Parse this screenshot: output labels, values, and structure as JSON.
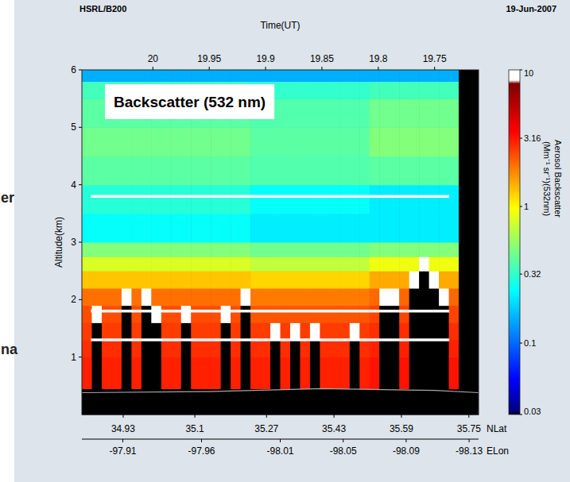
{
  "chart_data": {
    "type": "heatmap",
    "title": "Backscatter (532 nm)",
    "header_left": "HSRL/B200",
    "header_right": "19-Jun-2007",
    "x_label": "Time(UT)",
    "y_label": "Altitude(km)",
    "side_texts": [
      "er",
      "na"
    ],
    "grid": false,
    "xlim": [
      20.063,
      19.711
    ],
    "xticks": [
      20,
      19.95,
      19.9,
      19.85,
      19.8,
      19.75
    ],
    "ylim": [
      0,
      6
    ],
    "yticks": [
      1,
      2,
      3,
      4,
      5,
      6
    ],
    "x_edges": [
      20.063,
      20.0542,
      20.0454,
      20.0366,
      20.0278,
      20.019,
      20.0102,
      20.0014,
      19.9926,
      19.9838,
      19.975,
      19.9662,
      19.9574,
      19.9486,
      19.9398,
      19.931,
      19.9222,
      19.9134,
      19.9046,
      19.8958,
      19.887,
      19.8782,
      19.8694,
      19.8606,
      19.8518,
      19.843,
      19.8342,
      19.8254,
      19.8166,
      19.8078,
      19.799,
      19.7902,
      19.7814,
      19.7726,
      19.7638,
      19.755,
      19.7462,
      19.7374,
      19.7286,
      19.7198,
      19.711
    ],
    "y_edges": [
      0,
      0.45,
      1,
      1.3,
      1.6,
      1.9,
      2.2,
      2.5,
      2.75,
      3,
      3.5,
      4,
      4.5,
      5,
      5.5,
      5.8,
      6
    ],
    "values": [
      [
        0.03,
        3,
        2.8,
        2.6,
        2.4,
        2,
        1.3,
        0.8,
        0.5,
        0.25,
        0.3,
        0.4,
        0.45,
        0.4,
        0.35,
        0.15
      ],
      [
        0.03,
        0.03,
        0.03,
        0.03,
        10,
        2,
        1.3,
        0.8,
        0.5,
        0.25,
        0.3,
        0.4,
        0.45,
        0.4,
        0.35,
        0.15
      ],
      [
        0.03,
        3,
        2.8,
        2.6,
        2.4,
        2,
        1.3,
        0.8,
        0.5,
        0.25,
        0.3,
        0.4,
        0.45,
        0.4,
        0.35,
        0.15
      ],
      [
        0.03,
        3,
        2.8,
        2.6,
        2.4,
        2,
        1.3,
        0.8,
        0.5,
        0.25,
        0.3,
        0.4,
        0.45,
        0.4,
        0.35,
        0.15
      ],
      [
        0.03,
        0.03,
        0.03,
        0.03,
        0.03,
        10,
        1.3,
        0.8,
        0.5,
        0.25,
        0.3,
        0.4,
        0.45,
        0.4,
        0.35,
        0.15
      ],
      [
        0.03,
        3,
        2.8,
        2.6,
        2.4,
        2,
        1.3,
        0.8,
        0.5,
        0.25,
        0.3,
        0.4,
        0.45,
        0.4,
        0.35,
        0.15
      ],
      [
        0.03,
        0.03,
        0.03,
        0.03,
        0.03,
        10,
        1.3,
        0.8,
        0.5,
        0.25,
        0.3,
        0.4,
        0.45,
        0.4,
        0.35,
        0.15
      ],
      [
        0.03,
        0.03,
        0.03,
        0.03,
        10,
        2,
        1.3,
        0.8,
        0.5,
        0.25,
        0.3,
        0.4,
        0.45,
        0.4,
        0.35,
        0.15
      ],
      [
        0.03,
        3,
        2.8,
        2.6,
        2.4,
        2,
        1.3,
        0.8,
        0.5,
        0.25,
        0.3,
        0.4,
        0.45,
        0.4,
        0.35,
        0.15
      ],
      [
        0.03,
        3,
        2.8,
        2.6,
        2.4,
        2,
        1.3,
        0.8,
        0.5,
        0.25,
        0.3,
        0.4,
        0.45,
        0.4,
        0.35,
        0.15
      ],
      [
        0.03,
        0.03,
        0.03,
        0.03,
        10,
        2,
        1.3,
        0.8,
        0.5,
        0.25,
        0.3,
        0.4,
        0.45,
        0.4,
        0.35,
        0.15
      ],
      [
        0.03,
        3,
        2.8,
        2.6,
        2.4,
        2,
        1.3,
        0.8,
        0.5,
        0.25,
        0.3,
        0.4,
        0.45,
        0.4,
        0.35,
        0.15
      ],
      [
        0.03,
        3,
        2.8,
        2.6,
        2.4,
        2,
        1.3,
        0.8,
        0.5,
        0.25,
        0.3,
        0.4,
        0.45,
        0.4,
        0.35,
        0.15
      ],
      [
        0.03,
        3,
        2.8,
        2.6,
        2.4,
        2,
        1.3,
        0.8,
        0.5,
        0.25,
        0.3,
        0.4,
        0.45,
        0.4,
        0.35,
        0.15
      ],
      [
        0.03,
        0.03,
        0.03,
        0.03,
        10,
        2,
        1.3,
        0.8,
        0.5,
        0.25,
        0.3,
        0.4,
        0.45,
        0.4,
        0.35,
        0.15
      ],
      [
        0.03,
        3,
        2.8,
        2.6,
        2.4,
        2,
        1.3,
        0.8,
        0.5,
        0.25,
        0.3,
        0.4,
        0.45,
        0.4,
        0.35,
        0.15
      ],
      [
        0.03,
        0.03,
        0.03,
        0.03,
        0.03,
        10,
        1.3,
        0.8,
        0.5,
        0.25,
        0.3,
        0.4,
        0.45,
        0.4,
        0.35,
        0.15
      ],
      [
        0.03,
        3,
        2.8,
        2.6,
        2.3,
        1.9,
        1.2,
        0.7,
        0.45,
        0.22,
        0.25,
        0.38,
        0.4,
        0.38,
        0.32,
        0.15
      ],
      [
        0.03,
        3,
        2.8,
        2.6,
        2.3,
        1.9,
        1.2,
        0.7,
        0.45,
        0.22,
        0.25,
        0.38,
        0.4,
        0.38,
        0.32,
        0.15
      ],
      [
        0.03,
        0.03,
        0.03,
        10,
        2.3,
        1.9,
        1.2,
        0.7,
        0.45,
        0.22,
        0.25,
        0.38,
        0.4,
        0.38,
        0.32,
        0.15
      ],
      [
        0.03,
        3,
        2.8,
        2.6,
        2.3,
        1.9,
        1.2,
        0.7,
        0.45,
        0.22,
        0.25,
        0.38,
        0.4,
        0.38,
        0.32,
        0.15
      ],
      [
        0.03,
        0.03,
        0.03,
        10,
        2.3,
        1.9,
        1.2,
        0.7,
        0.45,
        0.22,
        0.25,
        0.38,
        0.4,
        0.38,
        0.32,
        0.15
      ],
      [
        0.03,
        3,
        2.8,
        2.6,
        2.3,
        1.9,
        1.2,
        0.7,
        0.45,
        0.22,
        0.25,
        0.38,
        0.4,
        0.38,
        0.32,
        0.15
      ],
      [
        0.03,
        0.03,
        0.03,
        10,
        2.3,
        1.9,
        1.2,
        0.7,
        0.45,
        0.22,
        0.25,
        0.38,
        0.4,
        0.38,
        0.32,
        0.15
      ],
      [
        0.03,
        3,
        2.8,
        2.6,
        2.3,
        1.9,
        1.2,
        0.7,
        0.45,
        0.22,
        0.25,
        0.38,
        0.4,
        0.38,
        0.32,
        0.15
      ],
      [
        0.03,
        3,
        2.8,
        2.6,
        2.3,
        1.9,
        1.2,
        0.7,
        0.45,
        0.22,
        0.25,
        0.38,
        0.4,
        0.38,
        0.32,
        0.15
      ],
      [
        0.03,
        3,
        2.8,
        2.6,
        2.3,
        1.9,
        1.2,
        0.7,
        0.45,
        0.22,
        0.25,
        0.38,
        0.4,
        0.38,
        0.32,
        0.15
      ],
      [
        0.03,
        0.03,
        0.03,
        10,
        2.3,
        1.9,
        1.2,
        0.7,
        0.45,
        0.22,
        0.25,
        0.38,
        0.4,
        0.38,
        0.32,
        0.15
      ],
      [
        0.03,
        3,
        2.8,
        2.6,
        2.3,
        1.9,
        1.2,
        0.7,
        0.45,
        0.22,
        0.25,
        0.38,
        0.4,
        0.38,
        0.32,
        0.15
      ],
      [
        0.03,
        3.2,
        3,
        2.8,
        2.5,
        2.1,
        1.5,
        0.9,
        0.5,
        0.22,
        0.22,
        0.4,
        0.5,
        0.45,
        0.35,
        0.15
      ],
      [
        0.03,
        0.03,
        0.03,
        0.03,
        0.03,
        10,
        1.5,
        0.9,
        0.5,
        0.22,
        0.22,
        0.4,
        0.5,
        0.45,
        0.35,
        0.15
      ],
      [
        0.03,
        0.03,
        0.03,
        0.03,
        0.03,
        10,
        1.5,
        0.9,
        0.5,
        0.22,
        0.22,
        0.4,
        0.5,
        0.45,
        0.35,
        0.15
      ],
      [
        0.03,
        3.2,
        3,
        2.8,
        2.5,
        2.1,
        1.5,
        0.9,
        0.5,
        0.22,
        0.22,
        0.4,
        0.5,
        0.45,
        0.35,
        0.15
      ],
      [
        0.03,
        0.03,
        0.03,
        0.03,
        0.03,
        0.03,
        10,
        0.9,
        0.5,
        0.22,
        0.22,
        0.4,
        0.5,
        0.45,
        0.35,
        0.15
      ],
      [
        0.03,
        0.03,
        0.03,
        0.03,
        0.03,
        0.03,
        0.03,
        10,
        0.5,
        0.22,
        0.22,
        0.4,
        0.5,
        0.45,
        0.35,
        0.15
      ],
      [
        0.03,
        0.03,
        0.03,
        0.03,
        0.03,
        0.03,
        10,
        0.9,
        0.5,
        0.22,
        0.22,
        0.4,
        0.5,
        0.45,
        0.35,
        0.15
      ],
      [
        0.03,
        0.03,
        0.03,
        0.03,
        0.03,
        10,
        1.5,
        0.9,
        0.5,
        0.22,
        0.22,
        0.4,
        0.5,
        0.45,
        0.35,
        0.15
      ],
      [
        0.03,
        3.2,
        3,
        2.8,
        2.5,
        2.1,
        1.5,
        0.9,
        0.5,
        0.22,
        0.22,
        0.4,
        0.5,
        0.45,
        0.35,
        0.15
      ],
      [
        0.03,
        0.03,
        0.03,
        0.03,
        0.03,
        0.03,
        0.03,
        0.03,
        0.03,
        0.03,
        0.03,
        0.03,
        0.03,
        0.03,
        0.03,
        0.03
      ],
      [
        0.03,
        0.03,
        0.03,
        0.03,
        0.03,
        0.03,
        0.03,
        0.03,
        0.03,
        0.03,
        0.03,
        0.03,
        0.03,
        0.03,
        0.03,
        0.03
      ]
    ],
    "colorbar_range": [
      0.03,
      10
    ],
    "colorbar_ticks": [
      10,
      3.16,
      1,
      0.32,
      0.1,
      0.03
    ],
    "colorbar_label": [
      "Aerosol Backscatter",
      "(Mm⁻¹ sr⁻¹)(532nm)"
    ],
    "flight_lines": [
      {
        "altitude": 3.8,
        "x": [
          20.055,
          19.737
        ]
      },
      {
        "altitude": 1.8,
        "x": [
          20.055,
          19.737
        ]
      },
      {
        "altitude": 1.3,
        "x": [
          20.055,
          19.737
        ]
      }
    ],
    "ground": {
      "x": [
        20.063,
        19.95,
        19.85,
        19.75,
        19.711
      ],
      "values": [
        0.38,
        0.4,
        0.45,
        0.42,
        0.38
      ]
    },
    "lat_axis": {
      "label": "NLat",
      "lim": [
        34.832,
        35.773
      ],
      "ticks": [
        34.93,
        35.1,
        35.27,
        35.43,
        35.59,
        35.75
      ]
    },
    "lon_axis": {
      "label": "ELon",
      "lim": [
        -97.884,
        -98.136
      ],
      "ticks": [
        -97.91,
        -97.96,
        -98.01,
        -98.05,
        -98.09,
        -98.13
      ]
    }
  }
}
